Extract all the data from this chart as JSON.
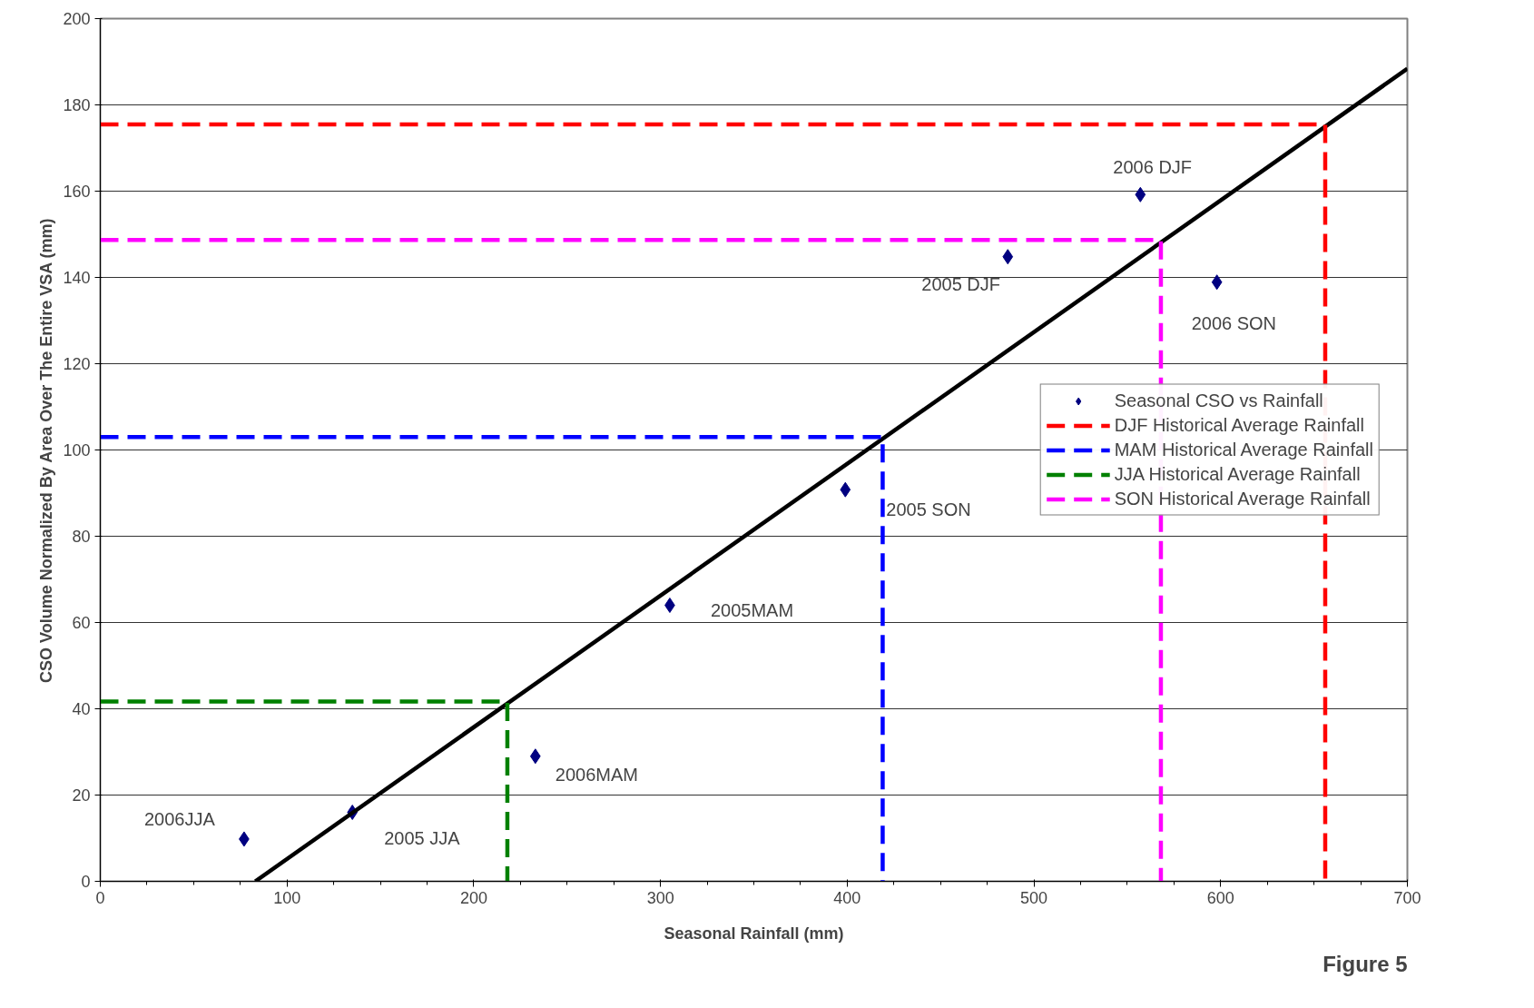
{
  "chart_data": {
    "type": "scatter",
    "xlabel": "Seasonal Rainfall (mm)",
    "ylabel": "CSO Volume Normalized By Area Over The Entire VSA (mm)",
    "xlim": [
      0,
      700
    ],
    "xticks": [
      0,
      100,
      200,
      300,
      400,
      500,
      600,
      700
    ],
    "ylim": [
      0,
      200
    ],
    "yticks": [
      0,
      20,
      40,
      60,
      80,
      100,
      120,
      140,
      160,
      180,
      200
    ],
    "grid": "y",
    "legend": "right",
    "series": [
      {
        "name": "Seasonal CSO vs Rainfall",
        "marker": "diamond",
        "color": "#000080",
        "x": [
          77,
          135,
          233,
          305,
          399,
          486,
          557,
          598
        ],
        "values": [
          9.8,
          16,
          29,
          64,
          90.8,
          144.8,
          159.2,
          138.9
        ]
      },
      {
        "type": "line",
        "color": "#000000",
        "line_style": "solid",
        "x": [
          83,
          700
        ],
        "values": [
          0,
          188.4
        ]
      },
      {
        "name": "DJF Historical Average Rainfall",
        "type": "line",
        "line_style": "dashed",
        "color": "#ff0000",
        "x": [
          0,
          656,
          656
        ],
        "values": [
          175.5,
          175.5,
          0
        ]
      },
      {
        "name": "MAM Historical Average Rainfall",
        "type": "line",
        "line_style": "dashed",
        "color": "#0000ff",
        "x": [
          0,
          419,
          419
        ],
        "values": [
          103,
          103,
          0
        ]
      },
      {
        "name": "JJA Historical Average Rainfall",
        "type": "line",
        "line_style": "dashed",
        "color": "#008000",
        "x": [
          0,
          218,
          218
        ],
        "values": [
          41.7,
          41.7,
          0
        ]
      },
      {
        "name": "SON Historical Average Rainfall",
        "type": "line",
        "line_style": "dashed",
        "color": "#ff00ff",
        "x": [
          0,
          568,
          568
        ],
        "values": [
          148.7,
          148.7,
          0
        ]
      }
    ],
    "annotations": [
      {
        "text": "2006JJA",
        "x": 77,
        "y": 9.8
      },
      {
        "text": "2005 JJA",
        "x": 135,
        "y": 16
      },
      {
        "text": "2006MAM",
        "x": 233,
        "y": 29
      },
      {
        "text": "2005MAM",
        "x": 305,
        "y": 64
      },
      {
        "text": "2005 SON",
        "x": 399,
        "y": 90.8
      },
      {
        "text": "2005 DJF",
        "x": 486,
        "y": 144.8
      },
      {
        "text": "2006 DJF",
        "x": 557,
        "y": 159.2
      },
      {
        "text": "2006 SON",
        "x": 598,
        "y": 138.9
      },
      "Figure 5"
    ]
  }
}
